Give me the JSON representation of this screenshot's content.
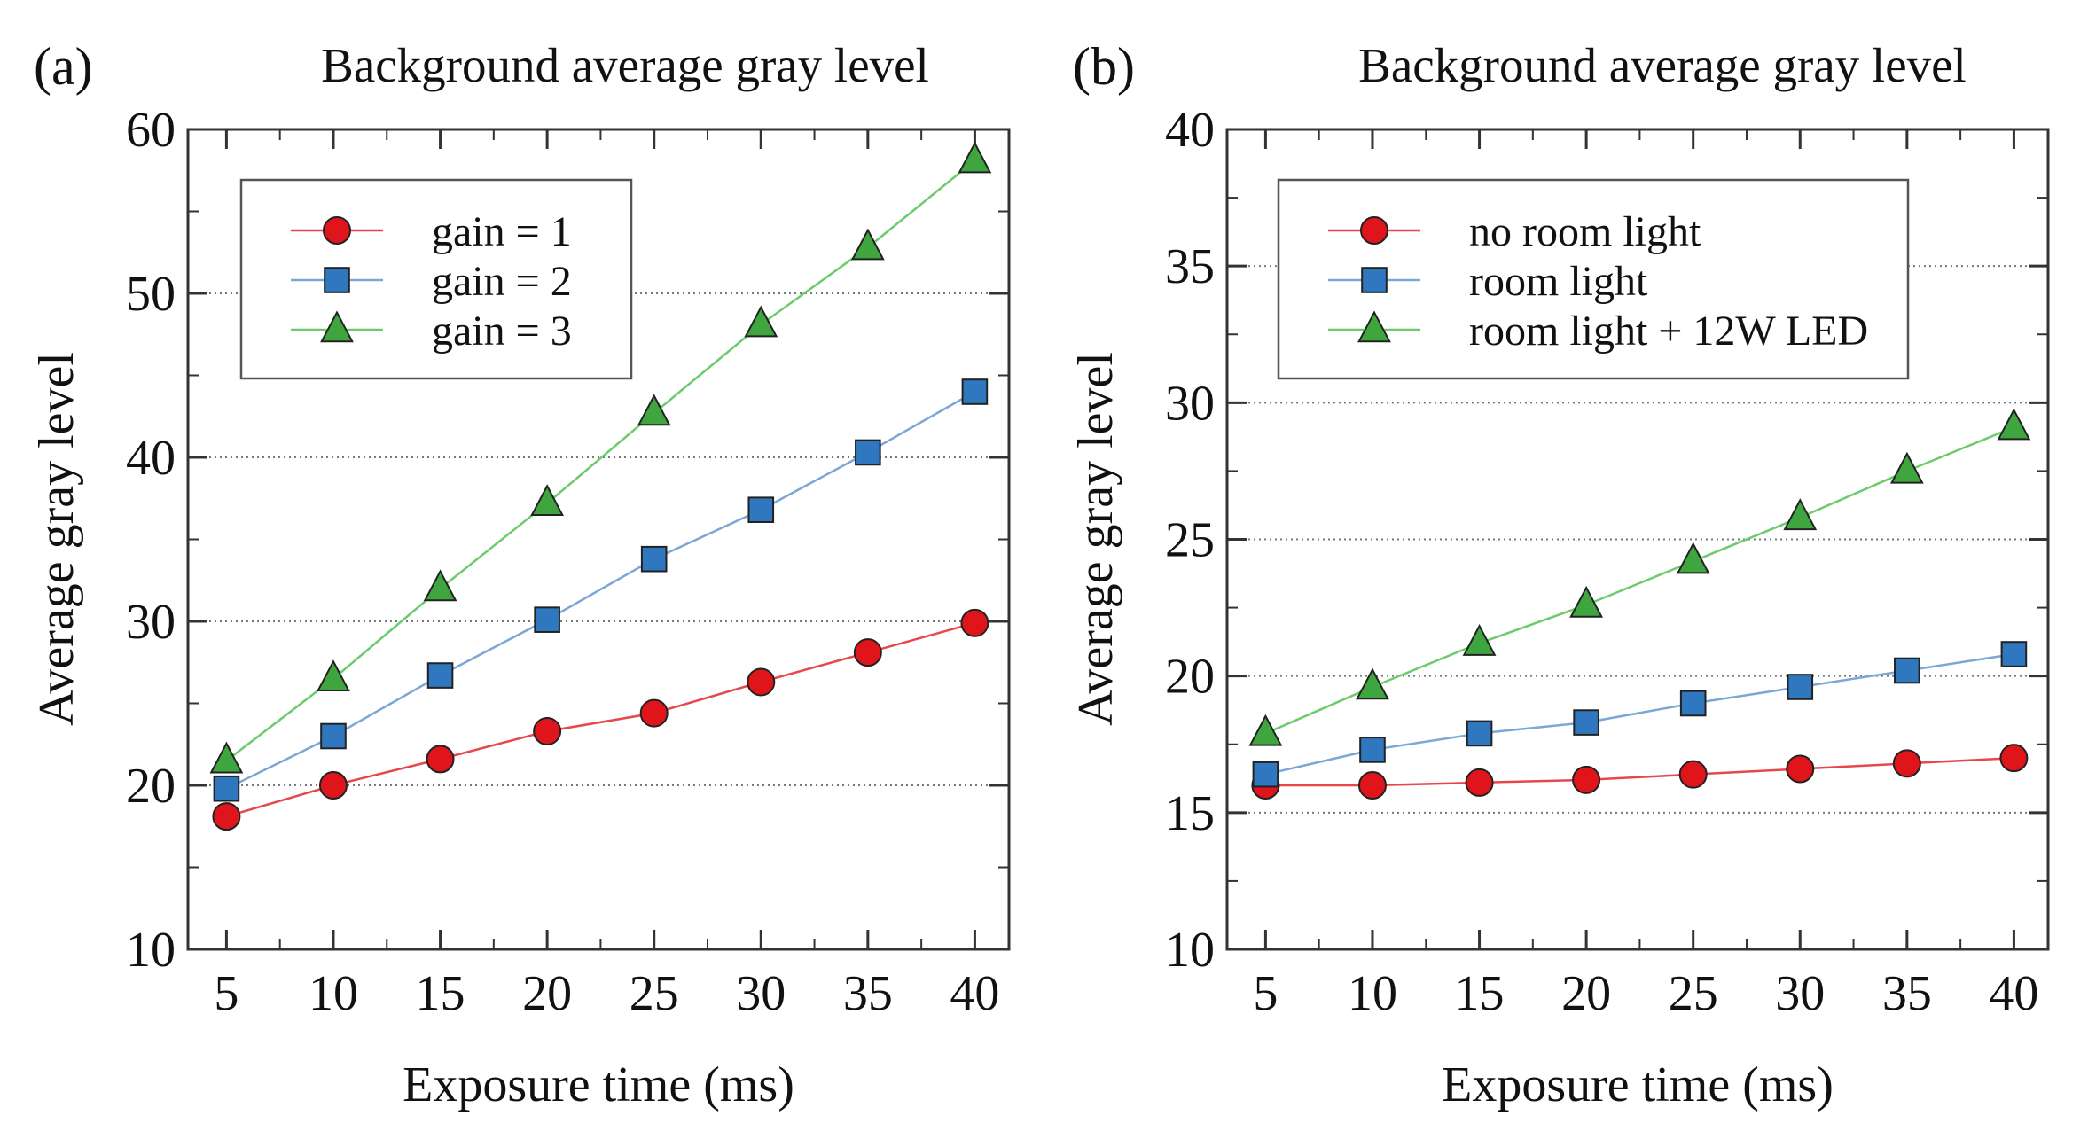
{
  "chart_data": [
    {
      "type": "line",
      "panel_label": "(a)",
      "title": "Background average gray level",
      "xlabel": "Exposure time (ms)",
      "ylabel": "Average gray level",
      "x": [
        5,
        10,
        15,
        20,
        25,
        30,
        35,
        40
      ],
      "xticks": [
        "5",
        "10",
        "15",
        "20",
        "25",
        "30",
        "35",
        "40"
      ],
      "xlim": [
        3.2,
        41.6
      ],
      "ylim": [
        10,
        60
      ],
      "yticks": [
        10,
        20,
        30,
        40,
        50,
        60
      ],
      "grid_lines": [
        20,
        30,
        40,
        50
      ],
      "legend_position": "top-left",
      "series": [
        {
          "name": "gain = 1",
          "color": "#e8474a",
          "fill": "#e0151c",
          "marker": "circle",
          "values": [
            18.1,
            20.0,
            21.6,
            23.3,
            24.4,
            26.3,
            28.1,
            29.9
          ]
        },
        {
          "name": "gain = 2",
          "color": "#7ba7d6",
          "fill": "#2f78c0",
          "marker": "square",
          "values": [
            19.8,
            23.0,
            26.7,
            30.1,
            33.8,
            36.8,
            40.3,
            44.0
          ]
        },
        {
          "name": "gain = 3",
          "color": "#6ccb6c",
          "fill": "#3fa63f",
          "marker": "triangle",
          "values": [
            21.5,
            26.5,
            32.0,
            37.2,
            42.7,
            48.1,
            52.8,
            58.1
          ]
        }
      ]
    },
    {
      "type": "line",
      "panel_label": "(b)",
      "title": "Background average gray level",
      "xlabel": "Exposure time (ms)",
      "ylabel": "Average gray level",
      "x": [
        5,
        10,
        15,
        20,
        25,
        30,
        35,
        40
      ],
      "xticks": [
        "5",
        "10",
        "15",
        "20",
        "25",
        "30",
        "35",
        "40"
      ],
      "xlim": [
        3.2,
        41.6
      ],
      "ylim": [
        10,
        40
      ],
      "yticks": [
        10,
        15,
        20,
        25,
        30,
        35,
        40
      ],
      "grid_lines": [
        15,
        20,
        25,
        30,
        35
      ],
      "legend_position": "top-left",
      "series": [
        {
          "name": "no room light",
          "color": "#e8474a",
          "fill": "#e0151c",
          "marker": "circle",
          "values": [
            16.0,
            16.0,
            16.1,
            16.2,
            16.4,
            16.6,
            16.8,
            17.0
          ]
        },
        {
          "name": "room light",
          "color": "#7ba7d6",
          "fill": "#2f78c0",
          "marker": "square",
          "values": [
            16.4,
            17.3,
            17.9,
            18.3,
            19.0,
            19.6,
            20.2,
            20.8
          ]
        },
        {
          "name": "room light + 12W LED",
          "color": "#6ccb6c",
          "fill": "#3fa63f",
          "marker": "triangle",
          "values": [
            17.9,
            19.6,
            21.2,
            22.6,
            24.2,
            25.8,
            27.5,
            29.1
          ]
        }
      ]
    }
  ]
}
